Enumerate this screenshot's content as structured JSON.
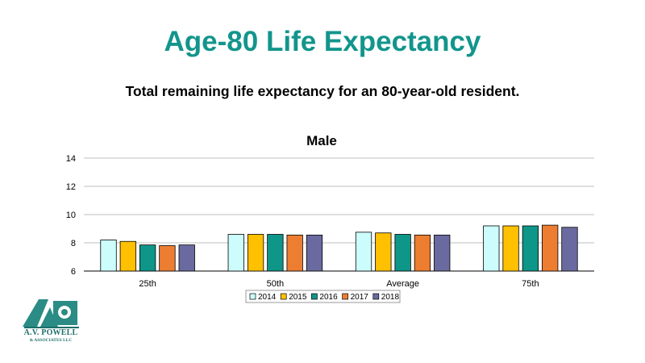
{
  "slide": {
    "title": "Age-80 Life Expectancy",
    "subtitle": "Total remaining life expectancy for an 80-year-old resident."
  },
  "logo": {
    "mark_text": "AVP",
    "name": "A.V. POWELL",
    "sub": "& ASSOCIATES LLC",
    "color": "#1d6f6a"
  },
  "chart_data": {
    "type": "bar",
    "title": "Male",
    "xlabel": "",
    "ylabel": "",
    "categories": [
      "25th",
      "50th",
      "Average",
      "75th"
    ],
    "ylim": [
      6,
      14
    ],
    "yticks": [
      6,
      8,
      10,
      12,
      14
    ],
    "grid": true,
    "legend_position": "bottom",
    "series": [
      {
        "name": "2014",
        "color": "#ccfcfc",
        "values": [
          8.2,
          8.6,
          8.75,
          9.2
        ]
      },
      {
        "name": "2015",
        "color": "#ffc000",
        "values": [
          8.1,
          8.6,
          8.7,
          9.2
        ]
      },
      {
        "name": "2016",
        "color": "#0e9688",
        "values": [
          7.85,
          8.6,
          8.6,
          9.2
        ]
      },
      {
        "name": "2017",
        "color": "#ed7d31",
        "values": [
          7.8,
          8.55,
          8.55,
          9.25
        ]
      },
      {
        "name": "2018",
        "color": "#6a6aa0",
        "values": [
          7.85,
          8.55,
          8.55,
          9.1
        ]
      }
    ]
  }
}
